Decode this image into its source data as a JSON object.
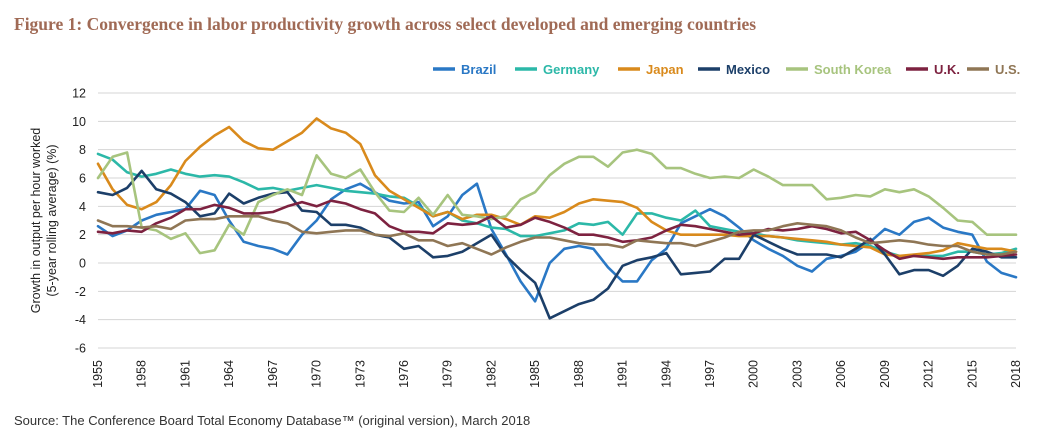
{
  "title": "Figure 1: Convergence in labor productivity growth across select developed and emerging countries",
  "source": "Source: The Conference Board Total Economy Database™ (original version), March 2018",
  "chart_data": {
    "type": "line",
    "ylabel_lines": [
      "Growth in output per hour worked",
      "(5-year rolling average) (%)"
    ],
    "xlim": [
      1955,
      2018
    ],
    "ylim": [
      -6,
      12
    ],
    "x_ticks": [
      1955,
      1958,
      1961,
      1964,
      1967,
      1970,
      1973,
      1976,
      1979,
      1982,
      1985,
      1988,
      1991,
      1994,
      1997,
      2000,
      2003,
      2006,
      2009,
      2012,
      2015,
      2018
    ],
    "y_ticks": [
      -6,
      -4,
      -2,
      0,
      2,
      4,
      6,
      8,
      10,
      12
    ],
    "grid": "horizontal",
    "legend_position": "top-right",
    "x": [
      1955,
      1956,
      1957,
      1958,
      1959,
      1960,
      1961,
      1962,
      1963,
      1964,
      1965,
      1966,
      1967,
      1968,
      1969,
      1970,
      1971,
      1972,
      1973,
      1974,
      1975,
      1976,
      1977,
      1978,
      1979,
      1980,
      1981,
      1982,
      1983,
      1984,
      1985,
      1986,
      1987,
      1988,
      1989,
      1990,
      1991,
      1992,
      1993,
      1994,
      1995,
      1996,
      1997,
      1998,
      1999,
      2000,
      2001,
      2002,
      2003,
      2004,
      2005,
      2006,
      2007,
      2008,
      2009,
      2010,
      2011,
      2012,
      2013,
      2014,
      2015,
      2016,
      2017,
      2018
    ],
    "series": [
      {
        "name": "Brazil",
        "color": "#2a78c5",
        "values": [
          2.6,
          1.9,
          2.3,
          3.0,
          3.4,
          3.6,
          3.8,
          5.1,
          4.8,
          3.0,
          1.5,
          1.2,
          1.0,
          0.6,
          2.0,
          3.0,
          4.5,
          5.2,
          5.6,
          5.0,
          4.4,
          4.2,
          4.3,
          2.6,
          3.3,
          4.8,
          5.6,
          2.4,
          0.6,
          -1.3,
          -2.7,
          0.0,
          1.0,
          1.2,
          1.0,
          -0.3,
          -1.3,
          -1.3,
          0.2,
          1.0,
          2.8,
          3.3,
          3.8,
          3.3,
          2.5,
          1.6,
          1.0,
          0.5,
          -0.2,
          -0.6,
          0.3,
          0.5,
          0.8,
          1.5,
          2.4,
          2.0,
          2.9,
          3.2,
          2.5,
          2.2,
          2.0,
          0.1,
          -0.7,
          -1.0
        ]
      },
      {
        "name": "Germany",
        "color": "#2cb8a8",
        "values": [
          7.7,
          7.3,
          6.4,
          6.1,
          6.3,
          6.6,
          6.3,
          6.1,
          6.2,
          6.1,
          5.7,
          5.2,
          5.3,
          5.1,
          5.3,
          5.5,
          5.3,
          5.1,
          5.0,
          4.9,
          4.7,
          4.6,
          4.0,
          3.3,
          3.6,
          3.0,
          2.8,
          2.5,
          2.4,
          1.9,
          1.9,
          2.1,
          2.3,
          2.8,
          2.7,
          2.9,
          2.0,
          3.5,
          3.5,
          3.2,
          3.0,
          3.7,
          2.6,
          2.4,
          2.2,
          2.1,
          1.9,
          1.8,
          1.6,
          1.5,
          1.4,
          1.3,
          1.4,
          1.2,
          0.8,
          0.5,
          0.5,
          0.5,
          0.5,
          0.8,
          0.8,
          0.6,
          0.7,
          1.0
        ]
      },
      {
        "name": "Japan",
        "color": "#d98a1c",
        "values": [
          7.0,
          5.2,
          4.1,
          3.8,
          4.3,
          5.5,
          7.2,
          8.2,
          9.0,
          9.6,
          8.6,
          8.1,
          8.0,
          8.6,
          9.2,
          10.2,
          9.5,
          9.2,
          8.4,
          6.2,
          5.1,
          4.5,
          3.9,
          3.3,
          3.6,
          3.1,
          3.4,
          3.4,
          3.1,
          2.7,
          3.3,
          3.2,
          3.6,
          4.2,
          4.5,
          4.4,
          4.3,
          3.9,
          2.9,
          2.3,
          2.0,
          2.0,
          2.0,
          2.0,
          1.9,
          1.9,
          1.9,
          1.8,
          1.7,
          1.6,
          1.5,
          1.3,
          1.2,
          1.1,
          0.6,
          0.5,
          0.6,
          0.7,
          0.9,
          1.4,
          1.2,
          1.0,
          1.0,
          0.8
        ]
      },
      {
        "name": "Mexico",
        "color": "#1c3f69",
        "values": [
          5.0,
          4.8,
          5.3,
          6.5,
          5.2,
          4.9,
          4.3,
          3.3,
          3.5,
          4.9,
          4.2,
          4.6,
          4.9,
          5.0,
          3.7,
          3.6,
          2.7,
          2.7,
          2.5,
          2.0,
          1.8,
          1.0,
          1.2,
          0.4,
          0.5,
          0.8,
          1.4,
          2.0,
          0.5,
          -0.5,
          -1.4,
          -3.9,
          -3.4,
          -2.9,
          -2.6,
          -1.8,
          -0.2,
          0.2,
          0.4,
          0.7,
          -0.8,
          -0.7,
          -0.6,
          0.3,
          0.3,
          2.0,
          1.5,
          1.0,
          0.6,
          0.6,
          0.6,
          0.4,
          1.0,
          1.7,
          0.6,
          -0.8,
          -0.5,
          -0.5,
          -0.9,
          -0.2,
          1.0,
          0.8,
          0.4,
          0.4
        ]
      },
      {
        "name": "South Korea",
        "color": "#a7c47e",
        "values": [
          6.0,
          7.5,
          7.8,
          2.5,
          2.3,
          1.7,
          2.1,
          0.7,
          0.9,
          2.7,
          2.0,
          4.3,
          4.8,
          5.2,
          4.8,
          7.6,
          6.3,
          6.0,
          6.6,
          5.0,
          3.7,
          3.6,
          4.6,
          3.4,
          4.8,
          3.4,
          3.3,
          3.1,
          3.3,
          4.5,
          5.0,
          6.2,
          7.0,
          7.5,
          7.5,
          6.8,
          7.8,
          8.0,
          7.7,
          6.7,
          6.7,
          6.3,
          6.0,
          6.1,
          6.0,
          6.6,
          6.1,
          5.5,
          5.5,
          5.5,
          4.5,
          4.6,
          4.8,
          4.7,
          5.2,
          5.0,
          5.2,
          4.7,
          3.9,
          3.0,
          2.9,
          2.0,
          2.0,
          2.0
        ]
      },
      {
        "name": "U.K.",
        "color": "#7d2240",
        "values": [
          2.2,
          2.1,
          2.3,
          2.2,
          2.8,
          3.2,
          3.8,
          3.8,
          4.1,
          3.9,
          3.5,
          3.5,
          3.6,
          4.0,
          4.3,
          4.0,
          4.4,
          4.2,
          3.8,
          3.5,
          2.6,
          2.2,
          2.2,
          2.1,
          2.8,
          2.7,
          2.8,
          3.3,
          2.5,
          2.7,
          3.2,
          2.9,
          2.5,
          2.0,
          2.0,
          1.8,
          1.5,
          1.6,
          1.8,
          2.3,
          2.7,
          2.6,
          2.4,
          2.2,
          2.0,
          2.1,
          2.4,
          2.3,
          2.4,
          2.6,
          2.4,
          2.1,
          2.2,
          1.6,
          0.9,
          0.3,
          0.5,
          0.4,
          0.3,
          0.4,
          0.4,
          0.4,
          0.5,
          0.6
        ]
      },
      {
        "name": "U.S.",
        "color": "#8f7655",
        "values": [
          3.0,
          2.6,
          2.6,
          2.5,
          2.6,
          2.4,
          3.0,
          3.1,
          3.1,
          3.3,
          3.3,
          3.3,
          3.0,
          2.8,
          2.2,
          2.1,
          2.2,
          2.3,
          2.3,
          2.0,
          1.9,
          2.1,
          1.6,
          1.6,
          1.2,
          1.4,
          1.0,
          0.6,
          1.1,
          1.5,
          1.8,
          1.8,
          1.6,
          1.4,
          1.3,
          1.3,
          1.1,
          1.6,
          1.5,
          1.4,
          1.4,
          1.2,
          1.5,
          1.8,
          2.2,
          2.3,
          2.3,
          2.6,
          2.8,
          2.7,
          2.6,
          2.3,
          1.8,
          1.4,
          1.5,
          1.6,
          1.5,
          1.3,
          1.2,
          1.2,
          0.8,
          0.6,
          0.6,
          0.8
        ]
      }
    ]
  }
}
